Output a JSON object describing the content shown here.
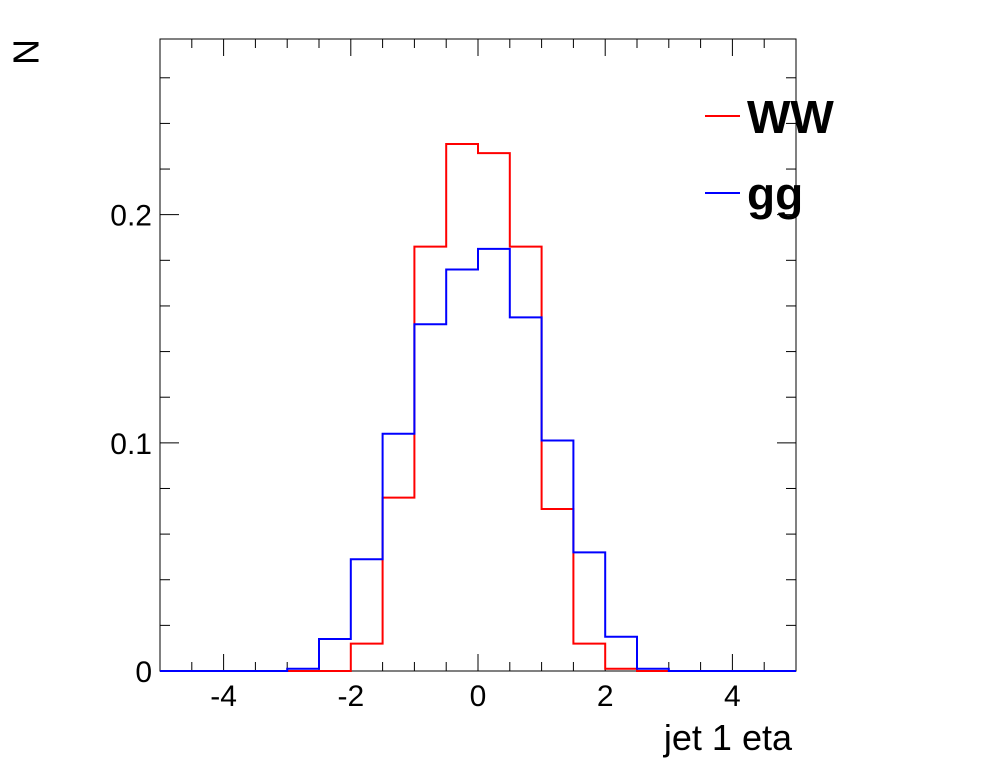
{
  "chart_data": {
    "type": "line",
    "style": "step-histogram",
    "title": "",
    "xlabel": "jet 1 eta",
    "ylabel": "N",
    "xlim": [
      -5,
      5
    ],
    "ylim": [
      0,
      0.277
    ],
    "grid": false,
    "legend_position": "top-right",
    "x_ticks": [
      -4,
      -2,
      0,
      2,
      4
    ],
    "x_tick_labels": [
      "-4",
      "-2",
      "0",
      "2",
      "4"
    ],
    "y_ticks": [
      0,
      0.1,
      0.2
    ],
    "y_tick_labels": [
      "0",
      "0.1",
      "0.2"
    ],
    "bin_edges": [
      -5,
      -4.5,
      -4,
      -3.5,
      -3,
      -2.5,
      -2,
      -1.5,
      -1,
      -0.5,
      0,
      0.5,
      1,
      1.5,
      2,
      2.5,
      3,
      3.5,
      4,
      4.5,
      5
    ],
    "series": [
      {
        "name": "WW",
        "color": "#ff0000",
        "values": [
          0,
          0,
          0,
          0,
          0,
          0,
          0.012,
          0.076,
          0.186,
          0.231,
          0.227,
          0.186,
          0.071,
          0.012,
          0.001,
          0,
          0,
          0,
          0,
          0
        ]
      },
      {
        "name": "gg",
        "color": "#0000ff",
        "values": [
          0,
          0,
          0,
          0,
          0.001,
          0.014,
          0.049,
          0.104,
          0.152,
          0.176,
          0.185,
          0.155,
          0.101,
          0.052,
          0.015,
          0.001,
          0,
          0,
          0,
          0
        ]
      }
    ]
  }
}
